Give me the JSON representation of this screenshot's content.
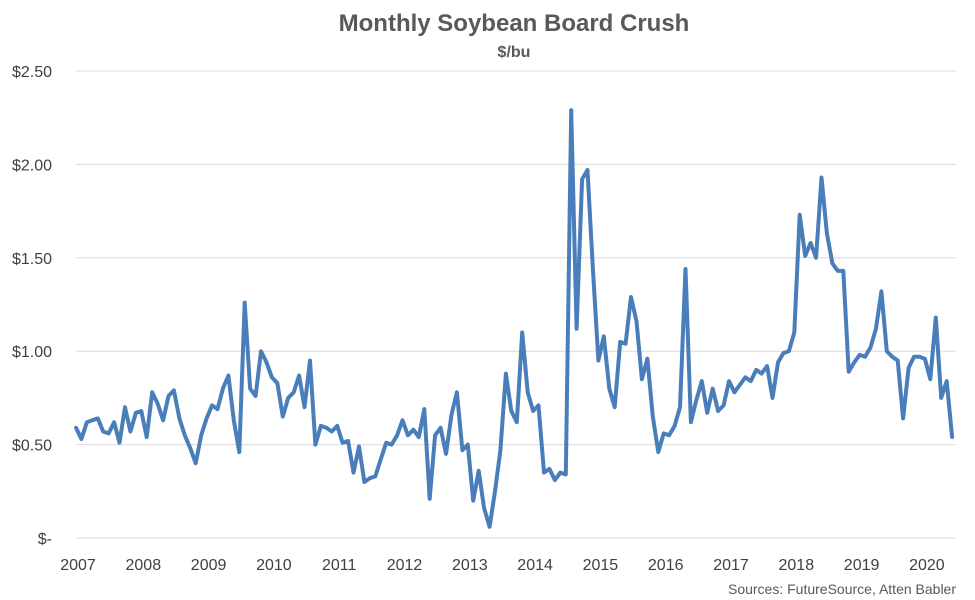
{
  "chart_data": {
    "type": "line",
    "title": "Monthly Soybean Board Crush",
    "subtitle": "$/bu",
    "xlabel": "",
    "ylabel": "",
    "ylim": [
      0,
      2.5
    ],
    "y_ticks": [
      {
        "value": 0,
        "label": "$-"
      },
      {
        "value": 0.5,
        "label": "$0.50"
      },
      {
        "value": 1.0,
        "label": "$1.00"
      },
      {
        "value": 1.5,
        "label": "$1.50"
      },
      {
        "value": 2.0,
        "label": "$2.00"
      },
      {
        "value": 2.5,
        "label": "$2.50"
      }
    ],
    "x_ticks": [
      "2007",
      "2008",
      "2009",
      "2010",
      "2011",
      "2012",
      "2013",
      "2014",
      "2015",
      "2016",
      "2017",
      "2018",
      "2019",
      "2020"
    ],
    "grid": "horizontal",
    "line_color": "#4a7ebb",
    "x_start": "2007-01",
    "x_end": "2020-06",
    "series": [
      {
        "name": "",
        "values": [
          0.59,
          0.53,
          0.62,
          0.63,
          0.64,
          0.57,
          0.56,
          0.62,
          0.51,
          0.7,
          0.57,
          0.67,
          0.68,
          0.54,
          0.78,
          0.72,
          0.63,
          0.76,
          0.79,
          0.64,
          0.55,
          0.48,
          0.4,
          0.55,
          0.64,
          0.71,
          0.69,
          0.8,
          0.87,
          0.63,
          0.46,
          1.26,
          0.8,
          0.76,
          1.0,
          0.94,
          0.86,
          0.83,
          0.65,
          0.75,
          0.78,
          0.87,
          0.7,
          0.95,
          0.5,
          0.6,
          0.59,
          0.57,
          0.6,
          0.51,
          0.52,
          0.35,
          0.49,
          0.3,
          0.32,
          0.33,
          0.42,
          0.51,
          0.5,
          0.55,
          0.63,
          0.55,
          0.58,
          0.54,
          0.69,
          0.21,
          0.55,
          0.59,
          0.45,
          0.66,
          0.78,
          0.47,
          0.5,
          0.2,
          0.36,
          0.16,
          0.06,
          0.25,
          0.47,
          0.88,
          0.68,
          0.62,
          1.1,
          0.78,
          0.68,
          0.71,
          0.35,
          0.37,
          0.31,
          0.35,
          0.34,
          2.29,
          1.12,
          1.92,
          1.97,
          1.43,
          0.95,
          1.08,
          0.8,
          0.7,
          1.05,
          1.04,
          1.29,
          1.16,
          0.85,
          0.96,
          0.65,
          0.46,
          0.56,
          0.55,
          0.6,
          0.7,
          1.44,
          0.62,
          0.74,
          0.84,
          0.67,
          0.8,
          0.68,
          0.71,
          0.84,
          0.78,
          0.82,
          0.86,
          0.84,
          0.9,
          0.88,
          0.92,
          0.75,
          0.94,
          0.99,
          1.0,
          1.1,
          1.73,
          1.51,
          1.58,
          1.5,
          1.93,
          1.63,
          1.47,
          1.43,
          1.43,
          0.89,
          0.94,
          0.98,
          0.97,
          1.02,
          1.12,
          1.32,
          1.0,
          0.97,
          0.95,
          0.64,
          0.91,
          0.97,
          0.97,
          0.96,
          0.85,
          1.18,
          0.75,
          0.84,
          0.54
        ]
      }
    ]
  },
  "source_note": "Sources: FutureSource, Atten Babler"
}
